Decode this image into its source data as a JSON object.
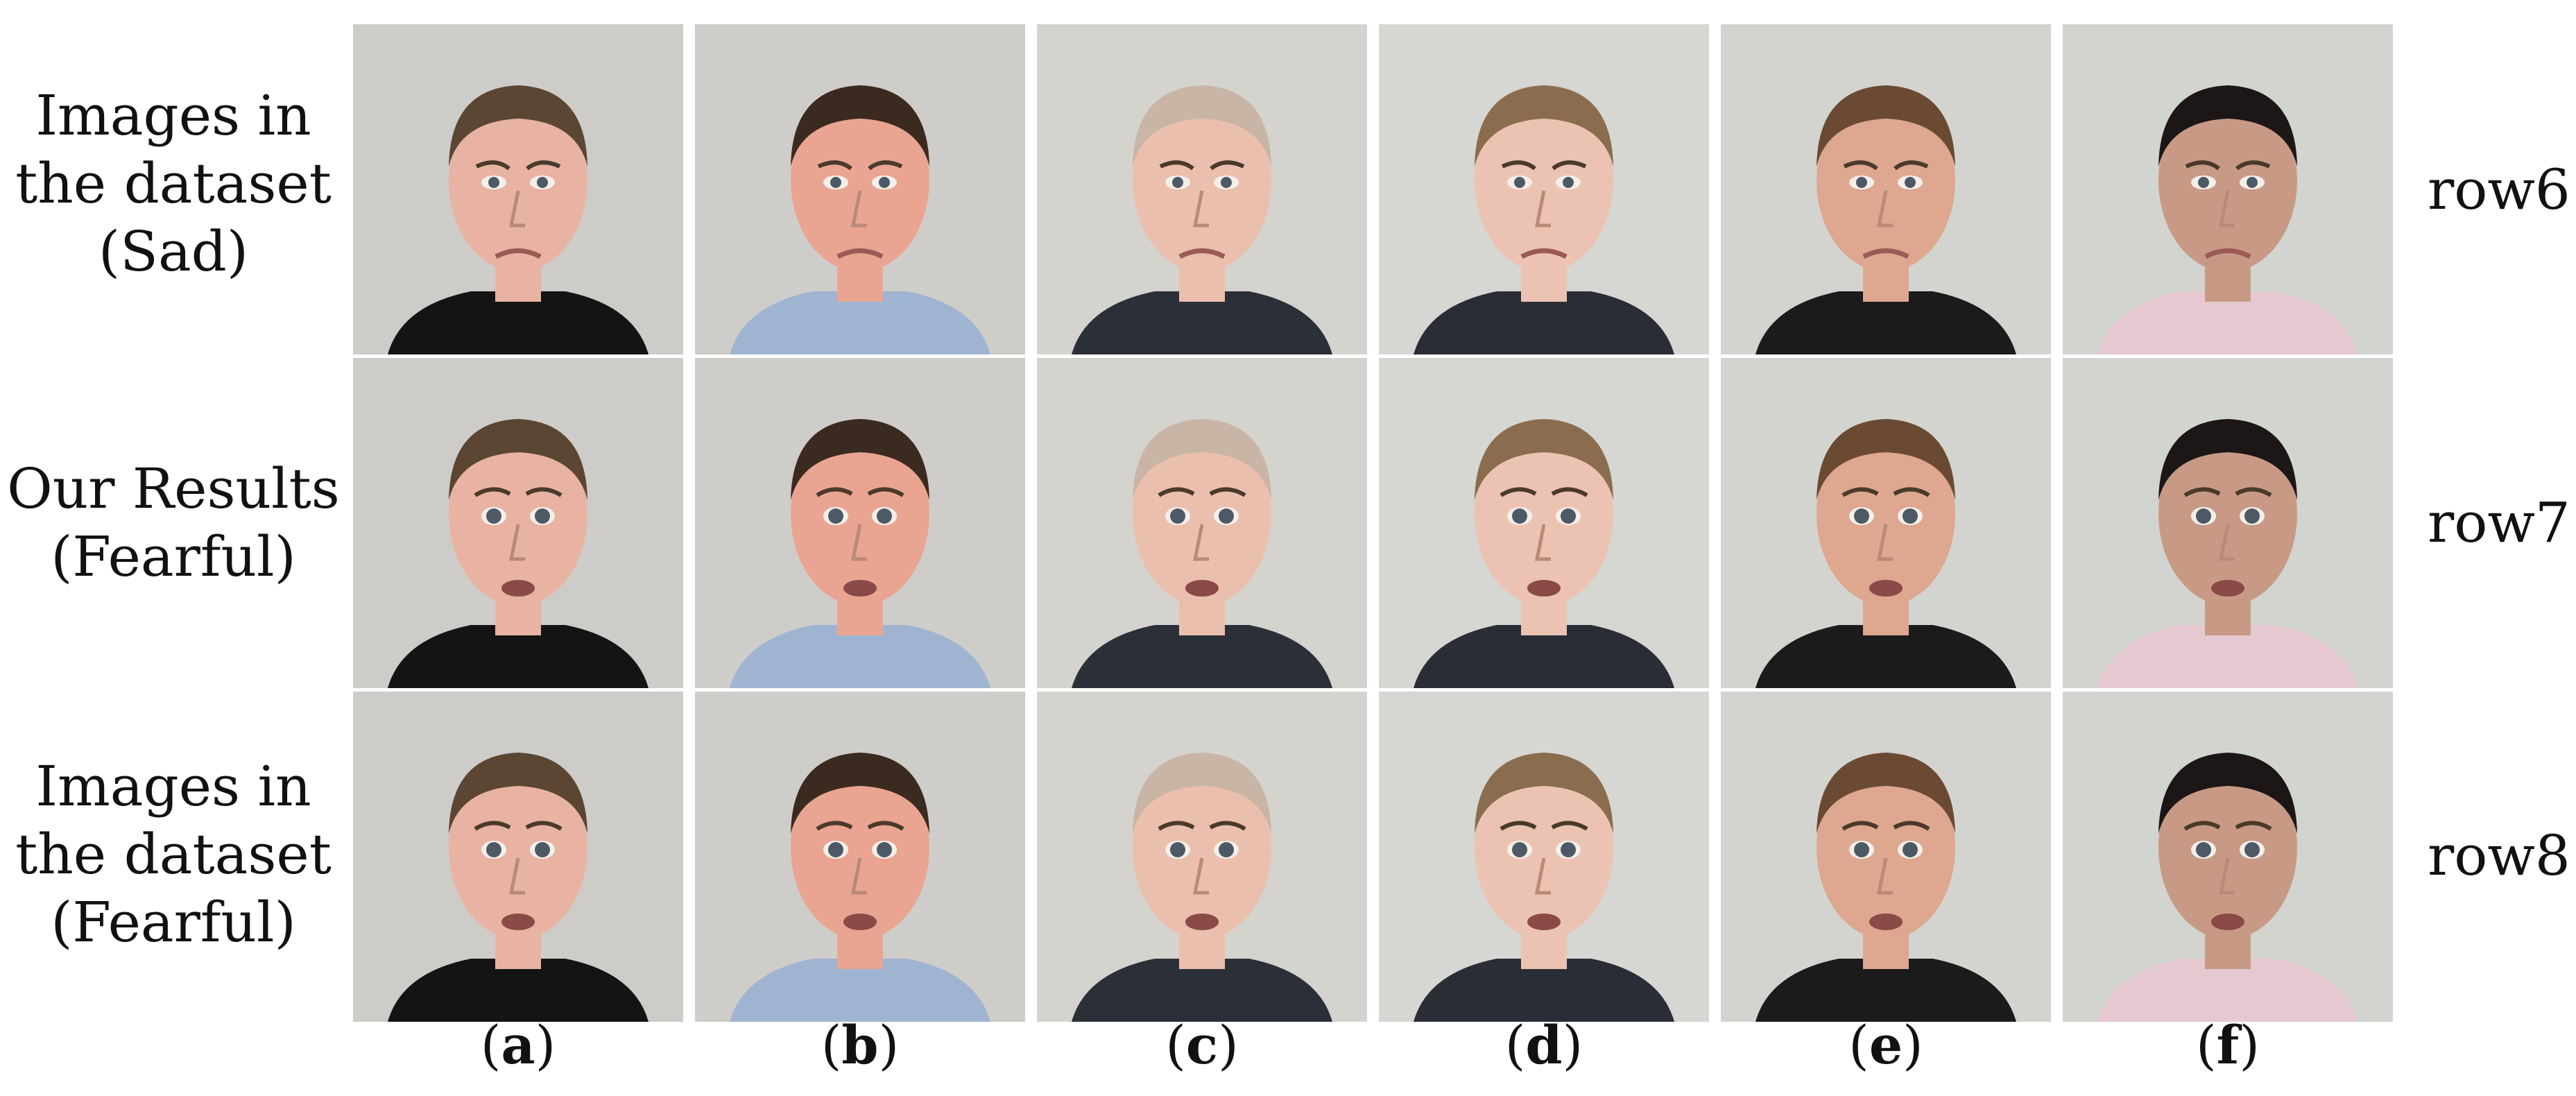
{
  "row_labels": [
    {
      "line1": "Images in",
      "line2": "the dataset",
      "line3": "(Sad)"
    },
    {
      "line1": "Our Results",
      "line2": "(Fearful)"
    },
    {
      "line1": "Images in",
      "line2": "the dataset",
      "line3": "(Fearful)"
    }
  ],
  "row_tags": [
    "row6",
    "row7",
    "row8"
  ],
  "columns": [
    {
      "letter": "a",
      "bg": "#cdccc8",
      "skin": "#e8b3a2",
      "hair": "#5a4632",
      "shirt": "#141414"
    },
    {
      "letter": "b",
      "bg": "#cfcdc9",
      "skin": "#eaa592",
      "hair": "#3b2a1f",
      "shirt": "#9fb4d1"
    },
    {
      "letter": "c",
      "bg": "#d4d3ce",
      "skin": "#ebbfae",
      "hair": "#c9b5a6",
      "shirt": "#2b2f38"
    },
    {
      "letter": "d",
      "bg": "#d6d6d2",
      "skin": "#ecc3b2",
      "hair": "#8a6c4f",
      "shirt": "#2a2d36"
    },
    {
      "letter": "e",
      "bg": "#d3d4cf",
      "skin": "#dea78f",
      "hair": "#6b4a34",
      "shirt": "#1b1b1b"
    },
    {
      "letter": "f",
      "bg": "#d2d4cf",
      "skin": "#c89a86",
      "hair": "#1c1616",
      "shirt": "#e6c9d0"
    }
  ],
  "expressions": [
    "sad",
    "fearful",
    "fearful"
  ]
}
